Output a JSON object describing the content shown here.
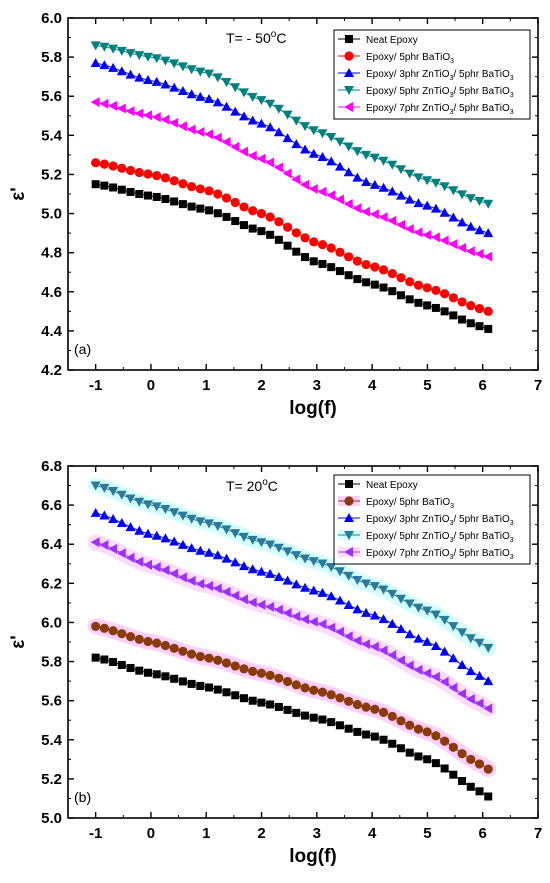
{
  "chart_data": [
    {
      "type": "scatter",
      "panel_label": "(a)",
      "annotation": {
        "prefix": "T= - 50",
        "sup": "o",
        "suffix": "C"
      },
      "xlabel": "log(f)",
      "ylabel": "ε'",
      "xlim": [
        -1.5,
        7
      ],
      "ylim": [
        4.2,
        6.0
      ],
      "x_ticks": [
        "-1",
        "0",
        "1",
        "2",
        "3",
        "4",
        "5",
        "6",
        "7"
      ],
      "y_ticks": [
        "4.2",
        "4.4",
        "4.6",
        "4.8",
        "5.0",
        "5.2",
        "5.4",
        "5.6",
        "5.8",
        "6.0"
      ],
      "grid": false,
      "legend_position": "top-right",
      "series": [
        {
          "name": "Neat Epoxy",
          "sub": "",
          "marker": "square",
          "color": "#000000",
          "glow": "",
          "x": [
            -1.0,
            0.0,
            1.0,
            2.0,
            3.0,
            4.0,
            5.0,
            6.0,
            6.1
          ],
          "y": [
            5.15,
            5.09,
            5.02,
            4.91,
            4.75,
            4.64,
            4.53,
            4.42,
            4.41
          ]
        },
        {
          "name": "Epoxy/ 5phr BaTiO",
          "sub": "3",
          "marker": "circle",
          "color": "#ff0000",
          "glow": "",
          "x": [
            -1.0,
            0.0,
            1.0,
            2.0,
            3.0,
            4.0,
            5.0,
            6.0,
            6.1
          ],
          "y": [
            5.26,
            5.2,
            5.12,
            5.0,
            4.85,
            4.73,
            4.62,
            4.51,
            4.5
          ]
        },
        {
          "name": "Epoxy/ 3phr ZnTiO",
          "sub": "3",
          "name2": "/ 5phr BaTiO",
          "sub2": "3",
          "marker": "triangle-up",
          "color": "#0000ff",
          "glow": "",
          "x": [
            -1.0,
            0.0,
            1.0,
            2.0,
            3.0,
            4.0,
            5.0,
            6.0,
            6.1
          ],
          "y": [
            5.77,
            5.68,
            5.59,
            5.46,
            5.3,
            5.15,
            5.04,
            4.91,
            4.9
          ]
        },
        {
          "name": "Epoxy/ 5phr ZnTiO",
          "sub": "3",
          "name2": "/ 5phr BaTiO",
          "sub2": "3",
          "marker": "triangle-down",
          "color": "#00807f",
          "glow": "",
          "x": [
            -1.0,
            0.0,
            1.0,
            2.0,
            3.0,
            4.0,
            5.0,
            6.0,
            6.1
          ],
          "y": [
            5.86,
            5.8,
            5.72,
            5.58,
            5.42,
            5.29,
            5.17,
            5.06,
            5.05
          ]
        },
        {
          "name": "Epoxy/ 7phr ZnTiO",
          "sub": "3",
          "name2": "/ 5phr BaTiO",
          "sub2": "3",
          "marker": "triangle-left",
          "color": "#ff00ff",
          "glow": "",
          "x": [
            -1.0,
            0.0,
            1.0,
            2.0,
            3.0,
            4.0,
            5.0,
            6.0,
            6.1
          ],
          "y": [
            5.57,
            5.5,
            5.41,
            5.28,
            5.12,
            5.0,
            4.89,
            4.79,
            4.78
          ]
        }
      ]
    },
    {
      "type": "scatter",
      "panel_label": "(b)",
      "annotation": {
        "prefix": "T= 20",
        "sup": "o",
        "suffix": "C"
      },
      "xlabel": "log(f)",
      "ylabel": "ε'",
      "xlim": [
        -1.5,
        7
      ],
      "ylim": [
        5.0,
        6.8
      ],
      "x_ticks": [
        "-1",
        "0",
        "1",
        "2",
        "3",
        "4",
        "5",
        "6",
        "7"
      ],
      "y_ticks": [
        "5.0",
        "5.2",
        "5.4",
        "5.6",
        "5.8",
        "6.0",
        "6.2",
        "6.4",
        "6.6",
        "6.8"
      ],
      "grid": false,
      "legend_position": "top-right",
      "series": [
        {
          "name": "Neat Epoxy",
          "sub": "",
          "marker": "square",
          "color": "#000000",
          "glow": "",
          "x": [
            -1.0,
            0.0,
            1.0,
            2.0,
            3.0,
            4.0,
            5.0,
            6.0,
            6.1
          ],
          "y": [
            5.82,
            5.74,
            5.67,
            5.59,
            5.51,
            5.42,
            5.3,
            5.13,
            5.11
          ]
        },
        {
          "name": "Epoxy/ 5phr BaTiO",
          "sub": "3",
          "marker": "circle",
          "color": "#8b3a0a",
          "glow": "#ff77ff",
          "x": [
            -1.0,
            0.0,
            1.0,
            2.0,
            3.0,
            4.0,
            5.0,
            6.0,
            6.1
          ],
          "y": [
            5.98,
            5.9,
            5.82,
            5.74,
            5.65,
            5.56,
            5.44,
            5.27,
            5.25
          ]
        },
        {
          "name": "Epoxy/ 3phr ZnTiO",
          "sub": "3",
          "name2": "/ 5phr BaTiO",
          "sub2": "3",
          "marker": "triangle-up",
          "color": "#0000ff",
          "glow": "",
          "x": [
            -1.0,
            0.0,
            1.0,
            2.0,
            3.0,
            4.0,
            5.0,
            6.0,
            6.1
          ],
          "y": [
            6.56,
            6.45,
            6.36,
            6.26,
            6.16,
            6.04,
            5.9,
            5.72,
            5.7
          ]
        },
        {
          "name": "Epoxy/ 5phr ZnTiO",
          "sub": "3",
          "name2": "/ 5phr BaTiO",
          "sub2": "3",
          "marker": "triangle-down",
          "color": "#2a7a99",
          "glow": "#88ffff",
          "x": [
            -1.0,
            0.0,
            1.0,
            2.0,
            3.0,
            4.0,
            5.0,
            6.0,
            6.1
          ],
          "y": [
            6.7,
            6.6,
            6.51,
            6.41,
            6.31,
            6.19,
            6.06,
            5.89,
            5.87
          ]
        },
        {
          "name": "Epoxy/ 7phr ZnTiO",
          "sub": "3",
          "name2": "/ 5phr BaTiO",
          "sub2": "3",
          "marker": "triangle-left",
          "color": "#9b30ff",
          "glow": "#ff99ff",
          "x": [
            -1.0,
            0.0,
            1.0,
            2.0,
            3.0,
            4.0,
            5.0,
            6.0,
            6.1
          ],
          "y": [
            6.41,
            6.29,
            6.19,
            6.09,
            6.0,
            5.88,
            5.74,
            5.58,
            5.56
          ]
        }
      ]
    }
  ]
}
